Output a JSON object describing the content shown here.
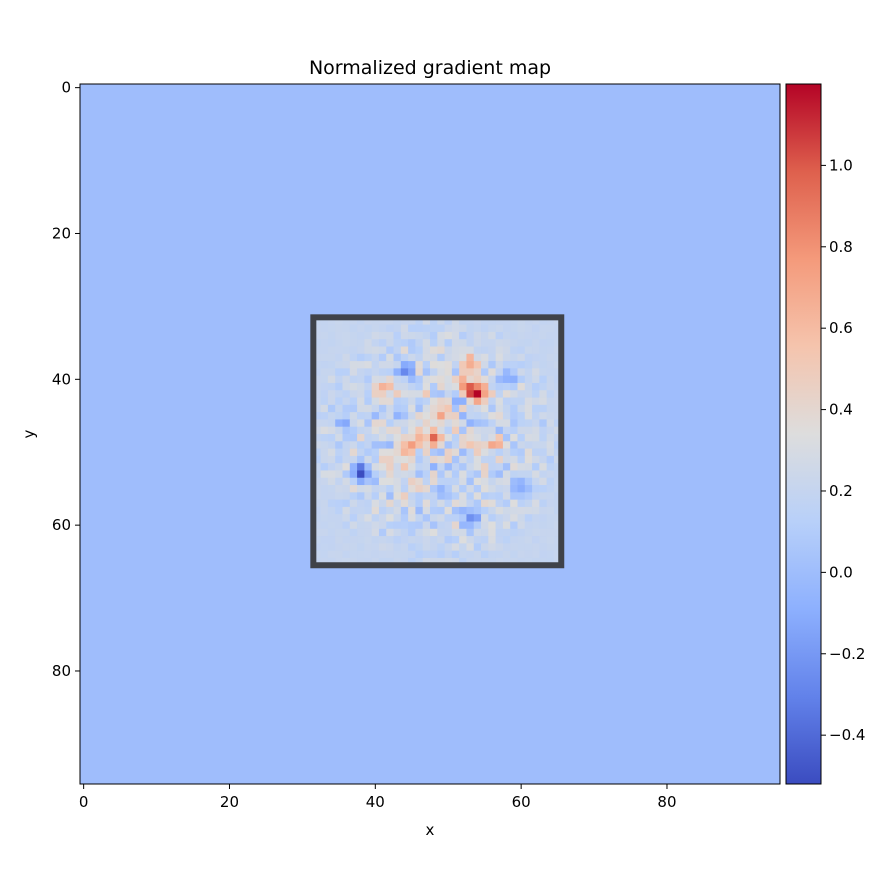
{
  "chart_data": {
    "type": "heatmap",
    "title": "Normalized gradient map",
    "xlabel": "x",
    "ylabel": "y",
    "grid_size": [
      96,
      96
    ],
    "xlim": [
      -0.5,
      95.5
    ],
    "ylim": [
      95.5,
      -0.5
    ],
    "x_ticks": [
      0,
      20,
      40,
      60,
      80
    ],
    "y_ticks": [
      0,
      20,
      40,
      60,
      80
    ],
    "grid": false,
    "colormap": "coolwarm",
    "color_range": [
      -0.52,
      1.2
    ],
    "background_value": 0.0,
    "colorbar": {
      "ticks": [
        -0.4,
        -0.2,
        0.0,
        0.2,
        0.4,
        0.6,
        0.8,
        1.0
      ],
      "tick_labels": [
        "−0.4",
        "−0.2",
        "0.0",
        "0.2",
        "0.4",
        "0.6",
        "0.8",
        "1.0"
      ],
      "placement": "right"
    },
    "highlight_box": {
      "x": [
        32,
        65
      ],
      "y": [
        32,
        65
      ],
      "color": "#3f4249"
    },
    "hotspots": [
      {
        "x": 54,
        "y": 42,
        "value": 1.2
      },
      {
        "x": 52,
        "y": 41,
        "value": 1.0
      },
      {
        "x": 53,
        "y": 38,
        "value": 0.75
      },
      {
        "x": 49,
        "y": 45,
        "value": 0.9
      },
      {
        "x": 48,
        "y": 48,
        "value": 0.95
      },
      {
        "x": 45,
        "y": 49,
        "value": 0.7
      },
      {
        "x": 41,
        "y": 41,
        "value": 0.65
      },
      {
        "x": 42,
        "y": 52,
        "value": 0.65
      },
      {
        "x": 56,
        "y": 49,
        "value": 0.7
      },
      {
        "x": 38,
        "y": 53,
        "value": -0.5
      },
      {
        "x": 53,
        "y": 59,
        "value": -0.3
      },
      {
        "x": 51,
        "y": 42,
        "value": -0.2
      },
      {
        "x": 44,
        "y": 39,
        "value": -0.2
      },
      {
        "x": 58,
        "y": 40,
        "value": -0.15
      },
      {
        "x": 60,
        "y": 55,
        "value": -0.1
      },
      {
        "x": 36,
        "y": 46,
        "value": -0.1
      }
    ]
  }
}
